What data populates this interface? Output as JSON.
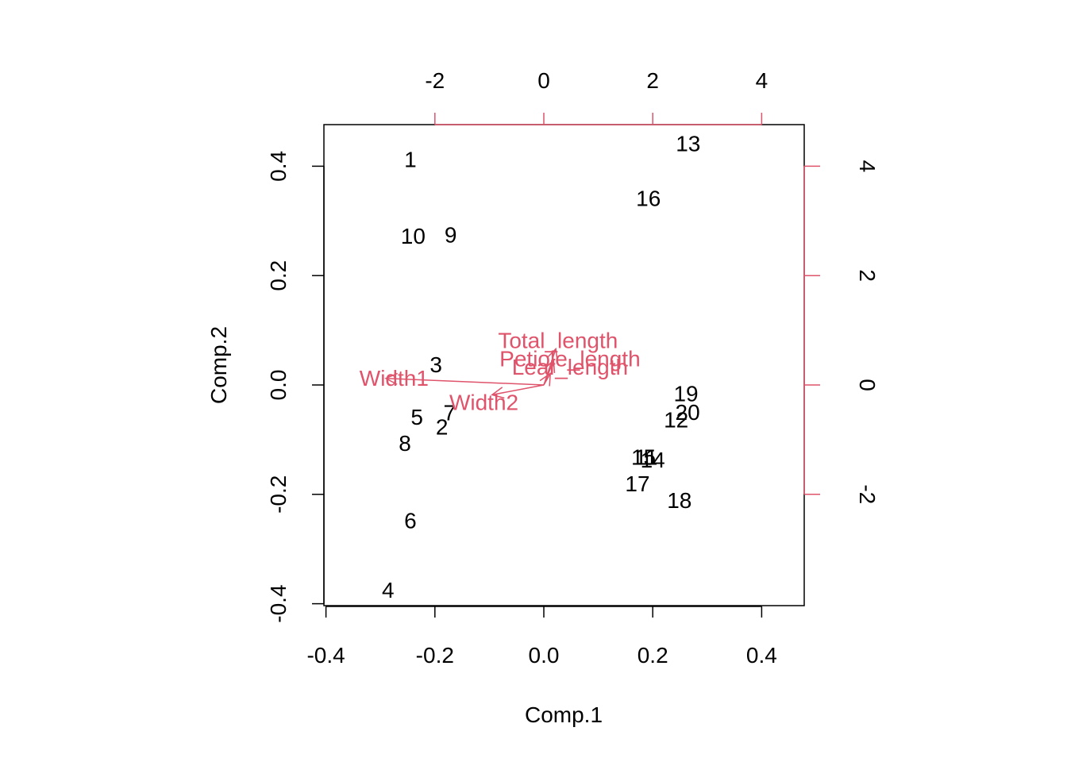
{
  "chart_data": {
    "type": "scatter",
    "subtype": "biplot",
    "xlabel": "Comp.1",
    "ylabel": "Comp.2",
    "xlim": [
      -0.4,
      0.45
    ],
    "ylim": [
      -0.4,
      0.47
    ],
    "x_ticks": [
      -0.4,
      -0.2,
      0.0,
      0.2,
      0.4
    ],
    "x_tick_labels": [
      "-0.4",
      "-0.2",
      "0.0",
      "0.2",
      "0.4"
    ],
    "y_ticks": [
      -0.4,
      -0.2,
      0.0,
      0.2,
      0.4
    ],
    "y_tick_labels": [
      "-0.4",
      "-0.2",
      "0.0",
      "0.2",
      "0.4"
    ],
    "top_ticks": [
      -2,
      0,
      2,
      4
    ],
    "top_tick_labels": [
      "-2",
      "0",
      "2",
      "4"
    ],
    "right_ticks": [
      -2,
      0,
      2,
      4
    ],
    "right_tick_labels": [
      "-2",
      "0",
      "2",
      "4"
    ],
    "loading_axis_scale": 10,
    "arrow_color": "#DF536B",
    "point_color": "#000000",
    "grid": false,
    "points": [
      {
        "label": "1",
        "x": -0.245,
        "y": 0.412
      },
      {
        "label": "2",
        "x": -0.187,
        "y": -0.077
      },
      {
        "label": "3",
        "x": -0.198,
        "y": 0.037
      },
      {
        "label": "4",
        "x": -0.286,
        "y": -0.375
      },
      {
        "label": "5",
        "x": -0.233,
        "y": -0.059
      },
      {
        "label": "6",
        "x": -0.245,
        "y": -0.248
      },
      {
        "label": "7",
        "x": -0.173,
        "y": -0.051
      },
      {
        "label": "8",
        "x": -0.255,
        "y": -0.107
      },
      {
        "label": "9",
        "x": -0.171,
        "y": 0.274
      },
      {
        "label": "10",
        "x": -0.24,
        "y": 0.272
      },
      {
        "label": "11",
        "x": 0.188,
        "y": -0.132
      },
      {
        "label": "12",
        "x": 0.243,
        "y": -0.064
      },
      {
        "label": "13",
        "x": 0.265,
        "y": 0.441
      },
      {
        "label": "14",
        "x": 0.2,
        "y": -0.137
      },
      {
        "label": "15",
        "x": 0.183,
        "y": -0.132
      },
      {
        "label": "16",
        "x": 0.192,
        "y": 0.341
      },
      {
        "label": "17",
        "x": 0.172,
        "y": -0.181
      },
      {
        "label": "18",
        "x": 0.249,
        "y": -0.211
      },
      {
        "label": "19",
        "x": 0.261,
        "y": -0.016
      },
      {
        "label": "20",
        "x": 0.264,
        "y": -0.05
      }
    ],
    "loadings": [
      {
        "name": "Total_length",
        "x": 0.22,
        "y": 0.66,
        "label_x": 0.26,
        "label_y": 0.81
      },
      {
        "name": "Petiole_length",
        "x": 0.18,
        "y": 0.45,
        "label_x": 0.48,
        "label_y": 0.48
      },
      {
        "name": "Leaf_length",
        "x": 0.12,
        "y": 0.21,
        "label_x": 0.48,
        "label_y": 0.33
      },
      {
        "name": "Width1",
        "x": -2.9,
        "y": 0.12,
        "label_x": -2.75,
        "label_y": 0.12
      },
      {
        "name": "Width2",
        "x": -0.95,
        "y": -0.18,
        "label_x": -1.1,
        "label_y": -0.32
      }
    ]
  }
}
